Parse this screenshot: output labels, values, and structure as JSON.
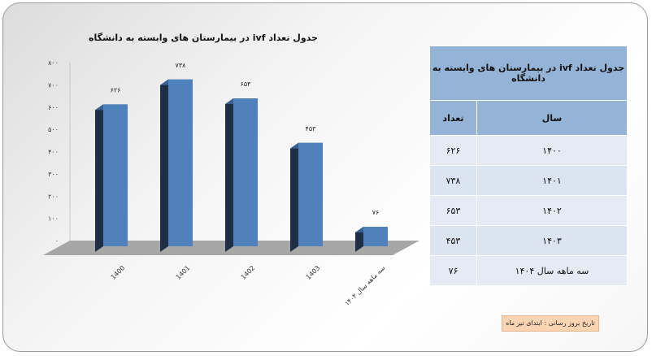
{
  "chart_data": {
    "type": "bar",
    "title": "جدول تعداد ivf در بیمارستان های وابسته به دانشگاه",
    "categories": [
      "1400",
      "1401",
      "1402",
      "1403",
      "سه ماهه سال ۱۴۰۴"
    ],
    "values": [
      626,
      738,
      653,
      453,
      76
    ],
    "data_labels": [
      "۶۲۶",
      "۷۳۸",
      "۶۵۳",
      "۴۵۳",
      "۷۶"
    ],
    "ylim": [
      0,
      800
    ],
    "yticks": [
      0,
      100,
      200,
      300,
      400,
      500,
      600,
      700,
      800
    ],
    "ytick_labels": [
      "۰",
      "۱۰۰",
      "۲۰۰",
      "۳۰۰",
      "۴۰۰",
      "۵۰۰",
      "۶۰۰",
      "۷۰۰",
      "۸۰۰"
    ],
    "xlabel": "",
    "ylabel": "",
    "grid": false,
    "bar_color": "#4f81bd"
  },
  "table": {
    "title": "جدول تعداد ivf در بیمارستان های وابسته به دانشگاه",
    "headers": {
      "year": "سال",
      "count": "تعداد"
    },
    "rows": [
      {
        "year": "۱۴۰۰",
        "count": "۶۲۶"
      },
      {
        "year": "۱۴۰۱",
        "count": "۷۳۸"
      },
      {
        "year": "۱۴۰۲",
        "count": "۶۵۳"
      },
      {
        "year": "۱۴۰۳",
        "count": "۴۵۳"
      },
      {
        "year": "سه ماهه سال ۱۴۰۴",
        "count": "۷۶"
      }
    ]
  },
  "note": "تاریخ بروز رسانی : ابتدای تیر ماه"
}
